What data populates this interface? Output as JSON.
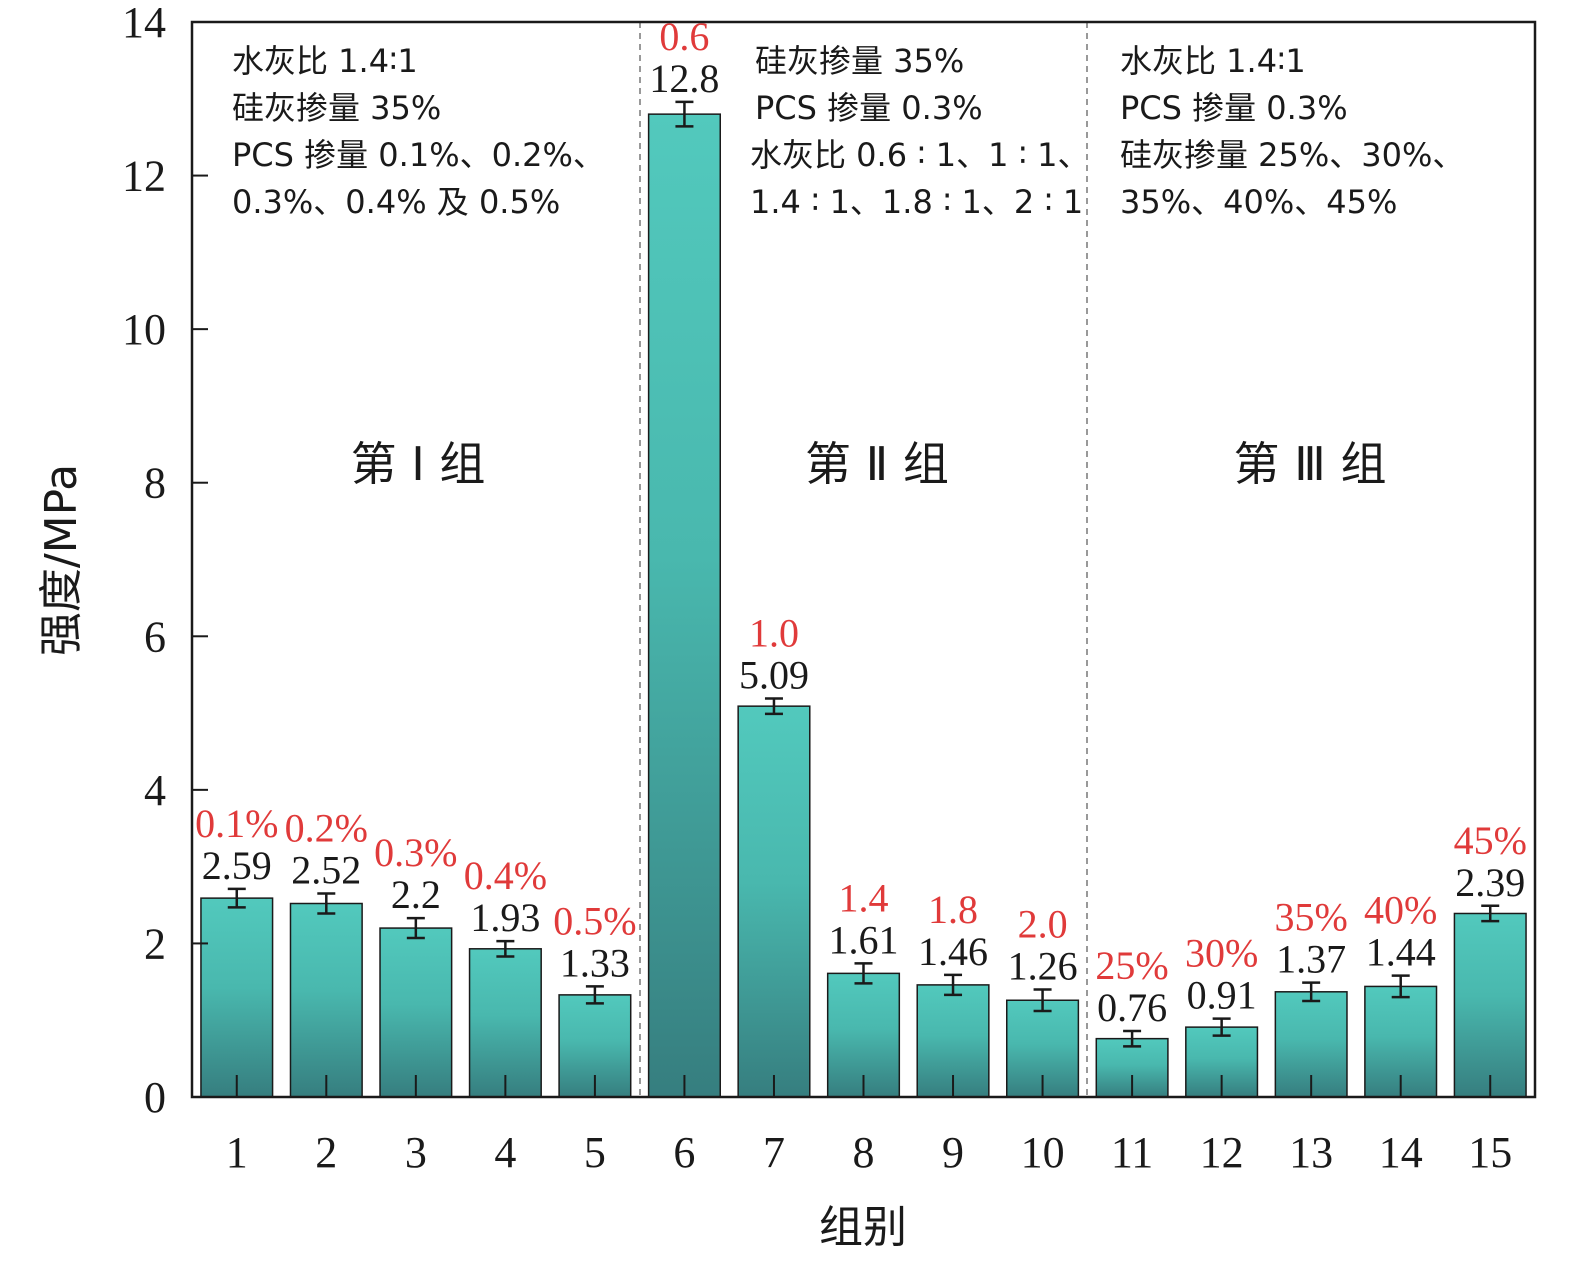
{
  "chart_data": {
    "type": "bar",
    "categories": [
      "1",
      "2",
      "3",
      "4",
      "5",
      "6",
      "7",
      "8",
      "9",
      "10",
      "11",
      "12",
      "13",
      "14",
      "15"
    ],
    "values": [
      2.59,
      2.52,
      2.2,
      1.93,
      1.33,
      12.8,
      5.09,
      1.61,
      1.46,
      1.26,
      0.76,
      0.91,
      1.37,
      1.44,
      2.39
    ],
    "value_labels": [
      "2.59",
      "2.52",
      "2.2",
      "1.93",
      "1.33",
      "12.8",
      "5.09",
      "1.61",
      "1.46",
      "1.26",
      "0.76",
      "0.91",
      "1.37",
      "1.44",
      "2.39"
    ],
    "errors": [
      0.12,
      0.13,
      0.13,
      0.1,
      0.11,
      0.16,
      0.1,
      0.13,
      0.13,
      0.14,
      0.1,
      0.11,
      0.12,
      0.14,
      0.1
    ],
    "param_labels": [
      "0.1%",
      "0.2%",
      "0.3%",
      "0.4%",
      "0.5%",
      "0.6",
      "1.0",
      "1.4",
      "1.8",
      "2.0",
      "25%",
      "30%",
      "35%",
      "40%",
      "45%"
    ],
    "xlabel": "组别",
    "ylabel": "强度/MPa",
    "ylim": [
      0,
      14
    ],
    "yticks": [
      "0",
      "2",
      "4",
      "6",
      "8",
      "10",
      "12",
      "14"
    ],
    "grid": false,
    "colors": {
      "bar_top": "#52c9bd",
      "bar_bottom": "#367e7f",
      "param_label": "#e03a3a",
      "divider": "#999999",
      "axis": "#1a1a1a"
    },
    "groups": [
      {
        "title": "第 Ⅰ 组",
        "notes": [
          "水灰比 1.4∶1",
          "硅灰掺量 35%",
          "PCS 掺量 0.1%、0.2%、",
          "0.3%、0.4% 及 0.5%"
        ]
      },
      {
        "title": "第 Ⅱ 组",
        "notes": [
          "硅灰掺量 35%",
          "PCS 掺量 0.3%",
          "水灰比 0.6 ∶ 1、1 ∶ 1、",
          "1.4 ∶ 1、1.8 ∶ 1、2 ∶ 1"
        ]
      },
      {
        "title": "第 Ⅲ 组",
        "notes": [
          "水灰比 1.4∶1",
          "PCS 掺量 0.3%",
          "硅灰掺量 25%、30%、",
          "35%、40%、45%"
        ]
      }
    ]
  }
}
